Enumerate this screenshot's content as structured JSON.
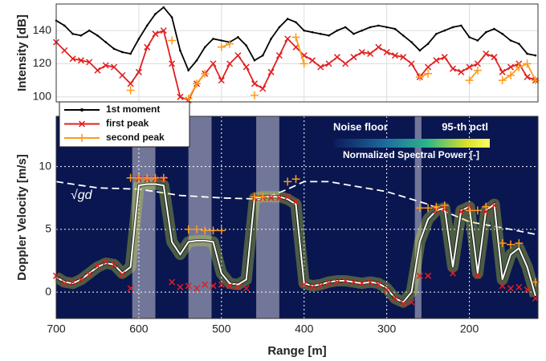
{
  "chart_data": [
    {
      "type": "line",
      "ylabel": "Intensity [dB]",
      "xlim": [
        700,
        117
      ],
      "xticks": [
        700,
        600,
        500,
        400,
        300,
        200
      ],
      "ylim": [
        97,
        156
      ],
      "yticks": [
        100,
        120,
        140
      ],
      "grid": true,
      "x": [
        700,
        690,
        680,
        670,
        660,
        650,
        640,
        630,
        620,
        610,
        600,
        590,
        580,
        570,
        560,
        550,
        540,
        530,
        520,
        510,
        500,
        490,
        480,
        470,
        460,
        450,
        440,
        430,
        420,
        410,
        400,
        390,
        380,
        370,
        360,
        350,
        340,
        330,
        320,
        310,
        300,
        290,
        280,
        270,
        260,
        250,
        240,
        230,
        220,
        210,
        200,
        190,
        180,
        170,
        160,
        150,
        140,
        130,
        120
      ],
      "series": [
        {
          "name": "1st moment",
          "color": "#000000",
          "marker": "dot",
          "values": [
            146,
            143,
            138,
            137,
            140,
            137,
            133,
            129,
            127,
            126,
            135,
            143,
            150,
            154,
            148,
            128,
            116,
            122,
            130,
            135,
            134,
            133,
            136,
            131,
            122,
            125,
            135,
            142,
            147,
            145,
            140,
            139,
            138,
            137,
            140,
            142,
            138,
            140,
            142,
            143,
            142,
            141,
            137,
            133,
            128,
            132,
            138,
            140,
            142,
            143,
            136,
            134,
            139,
            141,
            138,
            134,
            132,
            126,
            125
          ]
        },
        {
          "name": "first peak",
          "color": "#e02020",
          "marker": "x",
          "values": [
            133,
            128,
            123,
            122,
            121,
            116,
            119,
            118,
            113,
            108,
            115,
            130,
            138,
            140,
            120,
            100,
            98,
            108,
            114,
            120,
            110,
            120,
            125,
            118,
            108,
            105,
            115,
            125,
            135,
            130,
            125,
            122,
            118,
            120,
            124,
            120,
            124,
            127,
            126,
            130,
            127,
            125,
            124,
            120,
            112,
            118,
            122,
            124,
            117,
            115,
            118,
            120,
            126,
            124,
            115,
            118,
            120,
            112,
            110
          ]
        },
        {
          "name": "second peak",
          "color": "#ff9a1a",
          "marker": "+",
          "values": [
            null,
            null,
            null,
            null,
            null,
            null,
            null,
            null,
            null,
            104,
            null,
            null,
            null,
            null,
            134,
            null,
            99,
            108,
            114,
            null,
            130,
            132,
            null,
            null,
            101,
            null,
            null,
            null,
            null,
            136,
            120,
            null,
            null,
            null,
            null,
            null,
            null,
            null,
            null,
            null,
            null,
            null,
            null,
            null,
            112,
            114,
            null,
            null,
            null,
            null,
            110,
            116,
            null,
            null,
            110,
            113,
            118,
            120,
            110
          ]
        }
      ]
    },
    {
      "type": "line",
      "xlabel": "Range [m]",
      "ylabel": "Doppler Velocity [m/s]",
      "xlim": [
        700,
        117
      ],
      "xticks": [
        700,
        600,
        500,
        400,
        300,
        200
      ],
      "ylim": [
        -2.1,
        14
      ],
      "yticks": [
        0,
        5,
        10
      ],
      "grid": true,
      "colorbar_low": "Noise floor",
      "colorbar_high": "95-th pctl",
      "colorbar_label": "Normalized Spectral Power [-]",
      "shaded_ranges": [
        [
          608,
          580
        ],
        [
          540,
          512
        ],
        [
          458,
          430
        ],
        [
          266,
          258
        ]
      ],
      "x": [
        700,
        690,
        680,
        670,
        660,
        650,
        640,
        630,
        620,
        610,
        600,
        590,
        580,
        570,
        560,
        550,
        540,
        530,
        520,
        510,
        500,
        490,
        480,
        470,
        460,
        450,
        440,
        430,
        420,
        410,
        400,
        390,
        380,
        370,
        360,
        350,
        340,
        330,
        320,
        310,
        300,
        290,
        280,
        270,
        260,
        250,
        240,
        230,
        220,
        210,
        200,
        190,
        180,
        170,
        160,
        150,
        140,
        130,
        120
      ],
      "series": [
        {
          "color": "#ffffff",
          "marker": "none",
          "values": [
            1.2,
            0.8,
            0.7,
            1,
            1.5,
            2,
            2.3,
            2.2,
            1.5,
            2,
            8.5,
            8.6,
            8.6,
            8.5,
            4,
            3,
            4,
            4.1,
            4.1,
            4,
            1.5,
            0.7,
            0.6,
            1,
            7.5,
            7.6,
            7.6,
            7.6,
            7.4,
            7,
            0.7,
            0.5,
            0.6,
            0.8,
            0.9,
            0.9,
            0.8,
            0.7,
            0.8,
            0.7,
            0.3,
            -0.5,
            -0.8,
            0,
            4,
            5.8,
            6.5,
            6.7,
            2,
            6.5,
            6.8,
            1.5,
            6.5,
            7,
            1,
            3,
            3.5,
            2,
            -0.3
          ]
        },
        {
          "color": "#e02020",
          "marker": "x",
          "values": [
            1.3,
            0.7,
            0.8,
            1,
            1.4,
            2.1,
            2.4,
            2.2,
            1.4,
            0.3,
            9,
            9,
            9,
            9,
            0.8,
            0.4,
            0.5,
            0.3,
            0.6,
            0.5,
            0.6,
            0.5,
            0.4,
            0.3,
            7.5,
            7.5,
            7.5,
            7.5,
            7.6,
            7.2,
            0.6,
            0.4,
            0.5,
            0.7,
            0.8,
            0.9,
            0.8,
            0.7,
            0.8,
            0.6,
            0.2,
            -0.5,
            -0.9,
            -0.8,
            1.3,
            1.3,
            6.5,
            6.6,
            1.5,
            6.4,
            6.8,
            1.3,
            6.4,
            6.9,
            0.5,
            0.3,
            0.4,
            0.2,
            -0.5
          ]
        },
        {
          "color": "#ff9a1a",
          "marker": "+",
          "values": [
            null,
            null,
            null,
            null,
            null,
            null,
            null,
            null,
            null,
            9.1,
            9.1,
            9.1,
            9.1,
            9.1,
            null,
            null,
            5,
            5,
            4.9,
            4.9,
            4.9,
            null,
            null,
            null,
            7.6,
            7.6,
            null,
            null,
            8.8,
            9,
            null,
            null,
            null,
            null,
            null,
            null,
            null,
            null,
            null,
            null,
            null,
            null,
            null,
            null,
            6.7,
            6.7,
            6.8,
            6.9,
            null,
            null,
            6.5,
            6.5,
            6.8,
            null,
            3.9,
            3.8,
            3.9,
            null,
            0.8
          ]
        }
      ],
      "shallow_water": {
        "label": "√gd",
        "x": [
          700,
          650,
          600,
          550,
          500,
          450,
          420,
          400,
          370,
          300,
          250,
          200,
          150,
          120
        ],
        "values": [
          8.8,
          8.3,
          8.2,
          7.7,
          7.5,
          7.4,
          8.2,
          8.8,
          8.8,
          8,
          7,
          5.6,
          5,
          4.6
        ]
      }
    }
  ]
}
